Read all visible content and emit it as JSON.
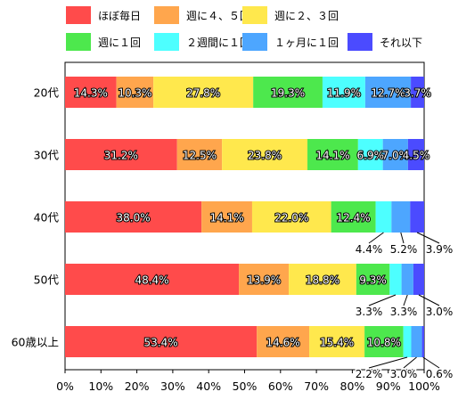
{
  "chart_data": {
    "type": "bar",
    "orientation": "horizontal",
    "stacked": true,
    "categories": [
      "20代",
      "30代",
      "40代",
      "50代",
      "60歳以上"
    ],
    "series": [
      {
        "name": "ほぼ毎日",
        "color": "#ff4b4b",
        "values": [
          14.3,
          31.2,
          38.0,
          48.4,
          53.4
        ],
        "labels": [
          "14.3%",
          "31.2%",
          "38.0%",
          "48.4%",
          "53.4%"
        ]
      },
      {
        "name": "週に４、５回",
        "color": "#ffa64d",
        "values": [
          10.3,
          12.5,
          14.1,
          13.9,
          14.6
        ],
        "labels": [
          "10.3%",
          "12.5%",
          "14.1%",
          "13.9%",
          "14.6%"
        ]
      },
      {
        "name": "週に２、３回",
        "color": "#ffe84d",
        "values": [
          27.8,
          23.8,
          22.0,
          18.8,
          15.4
        ],
        "labels": [
          "27.8%",
          "23.8%",
          "22.0%",
          "18.8%",
          "15.4%"
        ]
      },
      {
        "name": "週に１回",
        "color": "#4de84d",
        "values": [
          19.3,
          14.1,
          12.4,
          9.3,
          10.8
        ],
        "labels": [
          "19.3%",
          "14.1%",
          "12.4%",
          "9.3%",
          "10.8%"
        ]
      },
      {
        "name": "２週間に１回",
        "color": "#4dffff",
        "values": [
          11.9,
          6.9,
          4.4,
          3.3,
          2.2
        ],
        "labels": [
          "11.9%",
          "6.9%",
          "4.4%",
          "3.3%",
          "2.2%"
        ]
      },
      {
        "name": "１ヶ月に１回",
        "color": "#4da6ff",
        "values": [
          12.7,
          7.0,
          5.2,
          3.3,
          3.0
        ],
        "labels": [
          "12.7%",
          "7.0%",
          "5.2%",
          "3.3%",
          "3.0%"
        ]
      },
      {
        "name": "それ以下",
        "color": "#4b4bff",
        "values": [
          3.7,
          4.5,
          3.9,
          3.0,
          0.6
        ],
        "labels": [
          "3.7%",
          "4.5%",
          "3.9%",
          "3.0%",
          "0.6%"
        ]
      }
    ],
    "xlim": [
      0,
      100
    ],
    "xticks": [
      0,
      10,
      20,
      30,
      40,
      50,
      60,
      70,
      80,
      90,
      100
    ],
    "xtick_labels": [
      "0%",
      "10%",
      "20%",
      "30%",
      "40%",
      "50%",
      "60%",
      "70%",
      "80%",
      "90%",
      "100%"
    ],
    "legend_position": "top",
    "grid": false
  }
}
